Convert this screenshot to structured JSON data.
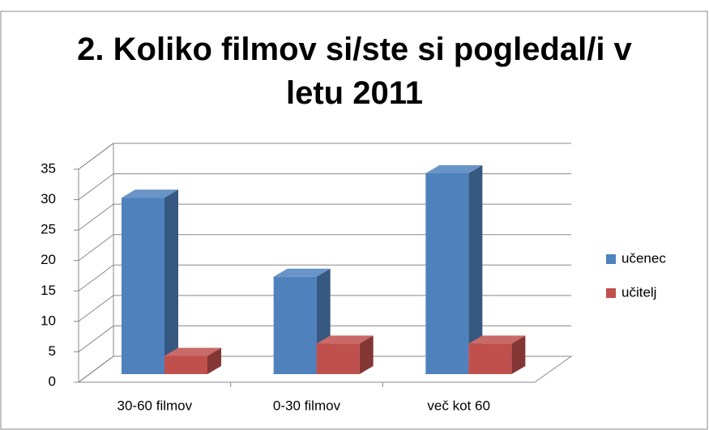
{
  "chart_data": {
    "type": "bar3d",
    "title": "2. Koliko filmov si/ste si pogledal/i v letu 2011",
    "categories": [
      "30-60 filmov",
      "0-30 filmov",
      "več kot 60"
    ],
    "series": [
      {
        "name": "učenec",
        "color": "#4f81bd",
        "values": [
          29,
          16,
          33
        ]
      },
      {
        "name": "učitelj",
        "color": "#c0504d",
        "values": [
          3,
          5,
          5
        ]
      }
    ],
    "ylim": [
      0,
      35
    ],
    "yticks": [
      0,
      5,
      10,
      15,
      20,
      25,
      30,
      35
    ],
    "grid": true,
    "legend": "right"
  }
}
